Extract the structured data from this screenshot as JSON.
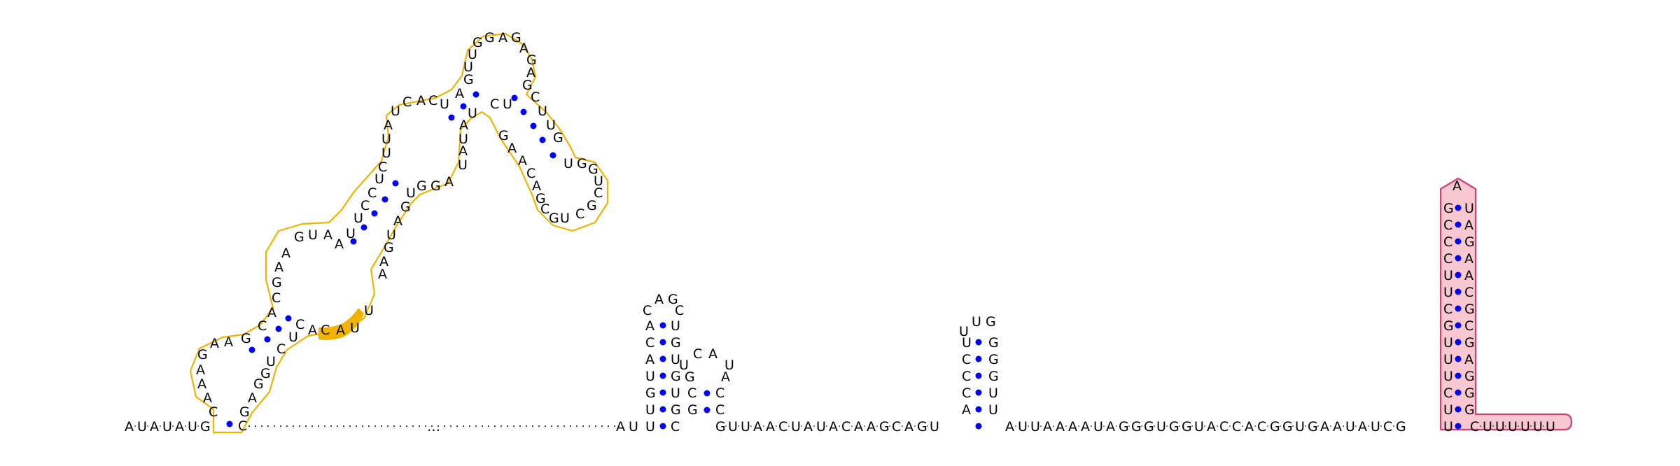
{
  "diagram": {
    "type": "rna-secondary-structure",
    "colors": {
      "highlight_outline": "#f0b400",
      "highlight_segment": "#f0b400",
      "terminator_fill": "#f8c8d2",
      "terminator_outline": "#d2426e",
      "base_pair": "#0000ff"
    },
    "baseline_5prime": "AUAUAUG",
    "baseline_gap": "…",
    "hairpin1_stem_left": "UUGUACA",
    "hairpin1_loop": "CAGC",
    "baseline_mid1": "GUUAACUAUACAAGCAGU",
    "hairpin3_stem_left": "ACCCU",
    "hairpin3_loop": "UUG",
    "baseline_mid2": "AUUAAAAUAGGGUGGUACCACGGUGAAUAUCG",
    "terminator_left": "UUCUUUGCUUCCCG",
    "terminator_loop": "A",
    "terminator_right": "UAGAACGCGAGGG",
    "tail_3prime": "CUUUUUU"
  }
}
